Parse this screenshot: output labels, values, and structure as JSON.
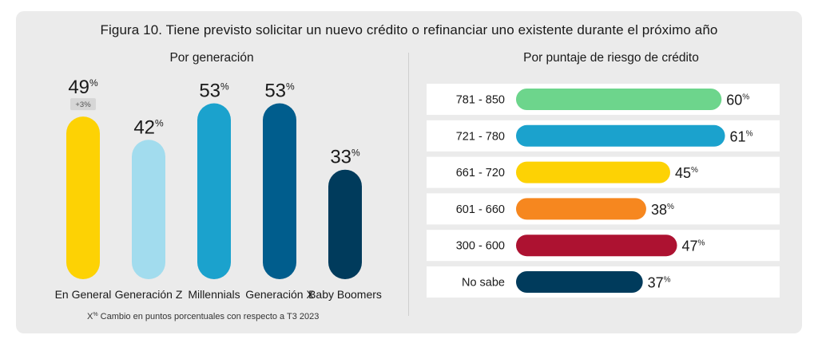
{
  "title": "Figura 10. Tiene previsto solicitar un nuevo crédito o refinanciar uno existente durante el próximo año",
  "footnote": {
    "symbol": "X",
    "sup": "%",
    "text": " Cambio en puntos porcentuales con respecto a T3 2023"
  },
  "chart_data": [
    {
      "type": "bar",
      "title": "Por generación",
      "categories": [
        "En General",
        "Generación Z",
        "Millennials",
        "Generación X",
        "Baby Boomers"
      ],
      "values": [
        49,
        42,
        53,
        53,
        33
      ],
      "value_suffix": "%",
      "colors": [
        "#fdd204",
        "#a2dcee",
        "#1ba2cd",
        "#005d8d",
        "#003b5c"
      ],
      "change_badges": [
        "+3%",
        "",
        "",
        "",
        ""
      ],
      "ylim": [
        0,
        56
      ]
    },
    {
      "type": "bar",
      "orientation": "horizontal",
      "title": "Por puntaje de riesgo de crédito",
      "categories": [
        "781 - 850",
        "721 - 780",
        "661 - 720",
        "601 - 660",
        "300 - 600",
        "No sabe"
      ],
      "values": [
        60,
        61,
        45,
        38,
        47,
        37
      ],
      "value_suffix": "%",
      "colors": [
        "#6dd58c",
        "#1ba2cd",
        "#fdd204",
        "#f6871f",
        "#ad1231",
        "#003b5c"
      ],
      "xlim": [
        0,
        66
      ]
    }
  ]
}
